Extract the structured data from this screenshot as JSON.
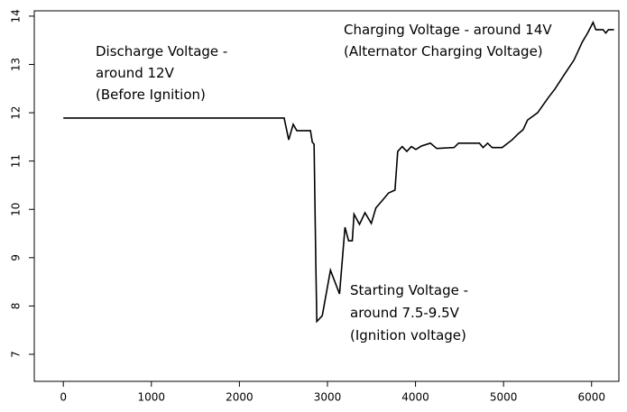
{
  "chart_data": {
    "type": "line",
    "annotations": [
      "Discharge Voltage -",
      "around 12V",
      "(Before Ignition)",
      "Charging Voltage - around 14V",
      "(Alternator Charging Voltage)",
      "Starting Voltage -",
      "around 7.5-9.5V",
      "(Ignition voltage)"
    ],
    "x": [
      0,
      2508,
      2560,
      2611,
      2652,
      2807,
      2828,
      2848,
      2869,
      2879,
      2890,
      2941,
      3034,
      3137,
      3199,
      3240,
      3282,
      3302,
      3364,
      3426,
      3498,
      3550,
      3612,
      3695,
      3767,
      3798,
      3849,
      3901,
      3953,
      4004,
      4066,
      4169,
      4241,
      4438,
      4489,
      4726,
      4768,
      4819,
      4871,
      4984,
      5098,
      5170,
      5222,
      5273,
      5387,
      5511,
      5583,
      5697,
      5800,
      5893,
      5955,
      6017,
      6048,
      6130,
      6161,
      6192,
      6254
    ],
    "series": [
      {
        "color": "#000000",
        "values": [
          11.89,
          11.89,
          11.44,
          11.76,
          11.63,
          11.63,
          11.39,
          11.35,
          8.74,
          7.68,
          7.7,
          7.8,
          8.74,
          8.25,
          9.63,
          9.35,
          9.35,
          9.9,
          9.69,
          9.93,
          9.71,
          10.03,
          10.16,
          10.34,
          10.4,
          11.2,
          11.3,
          11.2,
          11.3,
          11.24,
          11.31,
          11.37,
          11.26,
          11.28,
          11.37,
          11.37,
          11.28,
          11.37,
          11.28,
          11.28,
          11.44,
          11.57,
          11.65,
          11.85,
          12.0,
          12.32,
          12.49,
          12.81,
          13.09,
          13.46,
          13.65,
          13.87,
          13.72,
          13.72,
          13.65,
          13.72,
          13.72
        ]
      }
    ],
    "xlim": [
      -330,
      6310
    ],
    "xticks": [
      0,
      1000,
      2000,
      3000,
      4000,
      5000,
      6000
    ],
    "ylim": [
      6.44,
      14.11
    ],
    "yticks": [
      7,
      8,
      9,
      10,
      11,
      12,
      13,
      14
    ]
  }
}
